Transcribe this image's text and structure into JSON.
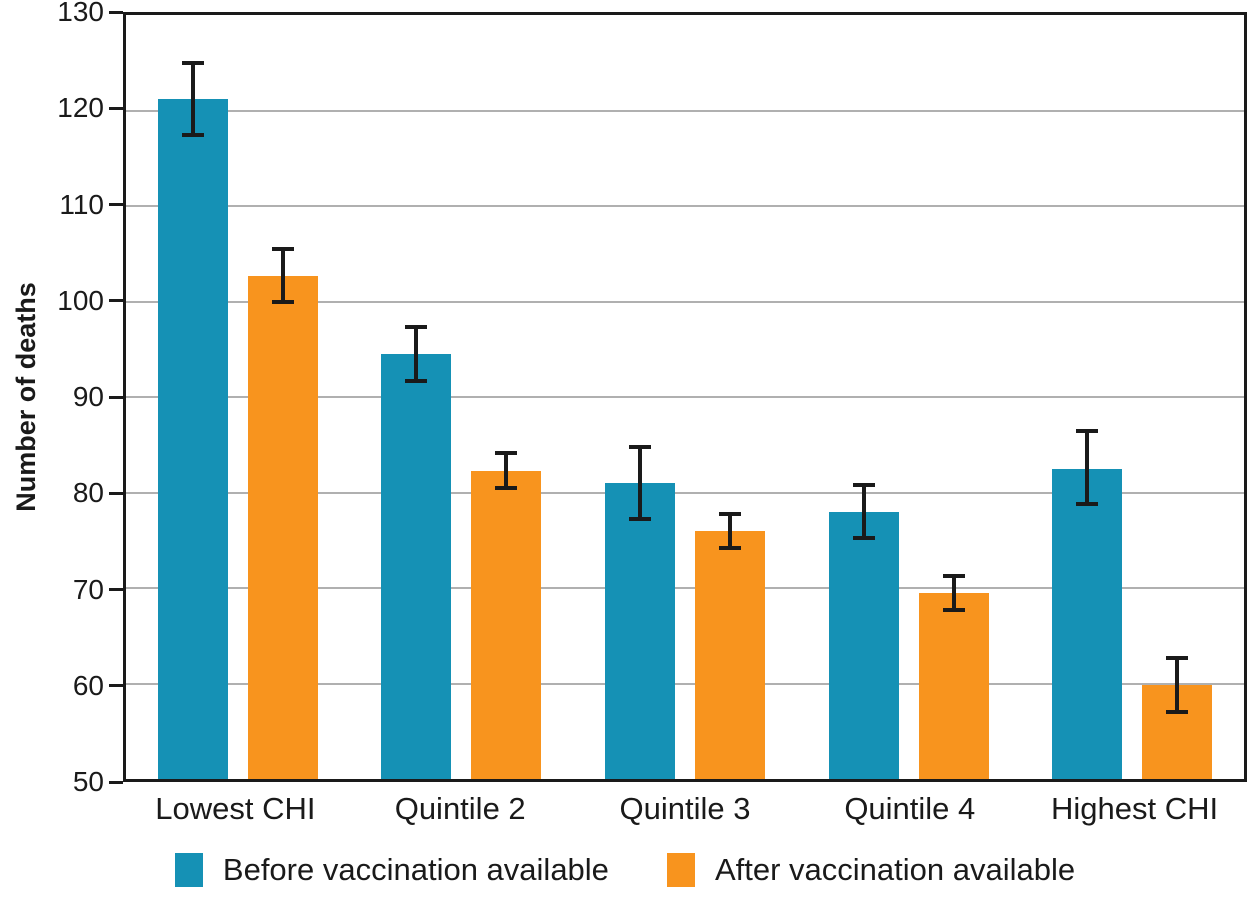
{
  "chart_data": {
    "type": "bar",
    "title": "",
    "xlabel": "",
    "ylabel": "Number of deaths",
    "ylim": [
      50,
      130
    ],
    "yticks": [
      130,
      120,
      110,
      100,
      90,
      80,
      70,
      60,
      50
    ],
    "grid": "horizontal",
    "legend_position": "bottom",
    "categories": [
      "Lowest CHI",
      "Quintile 2",
      "Quintile 3",
      "Quintile 4",
      "Highest CHI"
    ],
    "series": [
      {
        "name": "Before vaccination available",
        "color": "#1591b5",
        "values": [
          121.2,
          94.5,
          81.0,
          78.0,
          82.5
        ],
        "err_low": [
          117.2,
          91.5,
          77.0,
          75.0,
          78.6
        ],
        "err_high": [
          125.2,
          97.5,
          85.0,
          81.0,
          86.6
        ]
      },
      {
        "name": "After vaccination available",
        "color": "#f8941e",
        "values": [
          102.7,
          82.3,
          76.0,
          69.5,
          59.8
        ],
        "err_low": [
          99.7,
          80.3,
          74.0,
          67.5,
          56.8
        ],
        "err_high": [
          105.7,
          84.3,
          78.0,
          71.5,
          62.9
        ]
      }
    ],
    "colors": {
      "frame": "#1a1a1a",
      "gridline": "#b0b0b0",
      "error_bar": "#1a1a1a",
      "background": "#ffffff"
    }
  }
}
